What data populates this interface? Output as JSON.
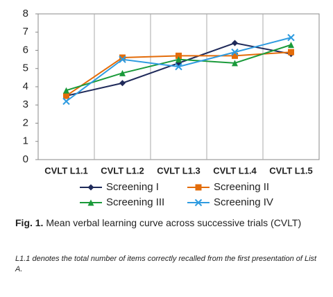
{
  "chart_data": {
    "type": "line",
    "categories": [
      "CVLT L1.1",
      "CVLT L1.2",
      "CVLT L1.3",
      "CVLT L1.4",
      "CVLT L1.5"
    ],
    "series": [
      {
        "name": "Screening I",
        "color": "#1f2a5a",
        "marker": "diamond",
        "values": [
          3.5,
          4.2,
          5.3,
          6.4,
          5.8
        ]
      },
      {
        "name": "Screening II",
        "color": "#e36c0a",
        "marker": "square",
        "values": [
          3.5,
          5.6,
          5.7,
          5.7,
          5.9
        ]
      },
      {
        "name": "Screening III",
        "color": "#1a9a3a",
        "marker": "triangle",
        "values": [
          3.8,
          4.75,
          5.5,
          5.3,
          6.3
        ]
      },
      {
        "name": "Screening IV",
        "color": "#2e9be0",
        "marker": "x",
        "values": [
          3.2,
          5.5,
          5.1,
          5.9,
          6.7
        ]
      }
    ],
    "ylim": [
      0,
      8
    ],
    "yticks": [
      0,
      1,
      2,
      3,
      4,
      5,
      6,
      7,
      8
    ],
    "caption_label": "Fig. 1.",
    "caption": "Mean verbal learning curve across successive trials (CVLT)",
    "note": "L1.1 denotes the total number of items correctly recalled from the first presentation of List A."
  }
}
